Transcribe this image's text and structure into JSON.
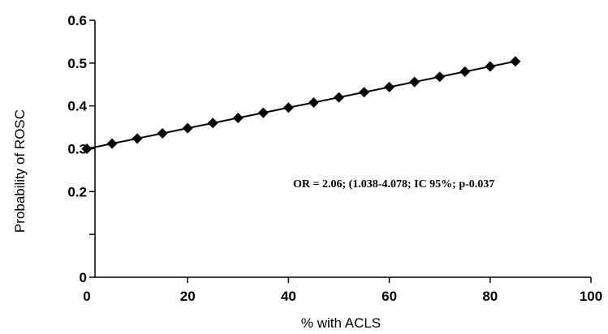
{
  "chart_data": {
    "type": "line",
    "title": "",
    "xlabel": "% with ACLS",
    "ylabel": "Probability of ROSC",
    "xlim": [
      0,
      100
    ],
    "ylim": [
      0,
      0.6
    ],
    "x_ticks": [
      0,
      20,
      40,
      60,
      80,
      100
    ],
    "x_tick_labels": [
      "0",
      "20",
      "40",
      "60",
      "80",
      "100"
    ],
    "y_ticks": [
      0,
      0.1,
      0.2,
      0.3,
      0.4,
      0.5,
      0.6
    ],
    "y_tick_labels": [
      "0",
      "",
      "0.2",
      "0.3",
      "0.4",
      "0.5",
      "0.6"
    ],
    "grid": false,
    "annotation": "OR = 2.06; (1.038-4.078; IC 95%; p-0.037",
    "series": [
      {
        "marker": "diamond",
        "color": "#000000",
        "x": [
          0,
          5,
          10,
          15,
          20,
          25,
          30,
          35,
          40,
          45,
          50,
          55,
          60,
          65,
          70,
          75,
          80,
          85
        ],
        "y": [
          0.3,
          0.312,
          0.324,
          0.336,
          0.348,
          0.36,
          0.372,
          0.384,
          0.396,
          0.408,
          0.42,
          0.432,
          0.444,
          0.456,
          0.468,
          0.48,
          0.492,
          0.504
        ]
      }
    ]
  }
}
